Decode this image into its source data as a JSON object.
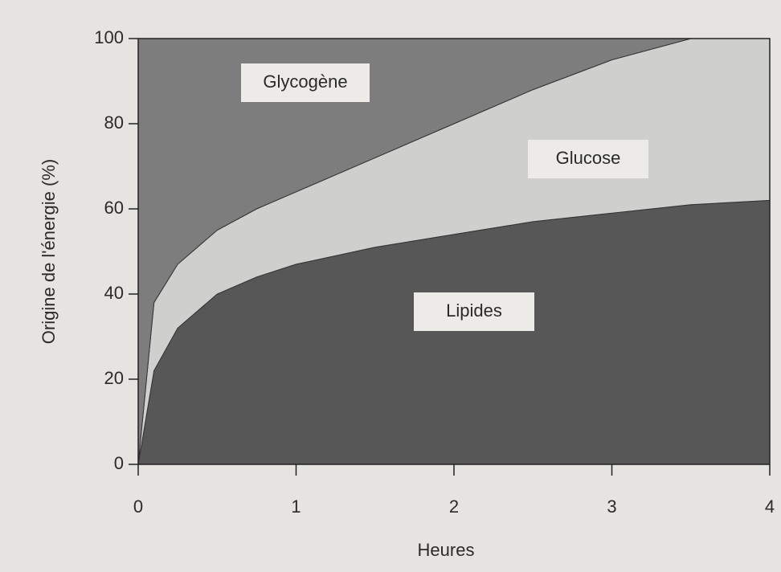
{
  "chart_data": {
    "type": "area",
    "stacked": true,
    "x_label": "Heures",
    "y_label": "Origine de l'énergie (%)",
    "x": [
      0,
      0.1,
      0.25,
      0.5,
      0.75,
      1,
      1.5,
      2,
      2.5,
      3,
      3.5,
      4
    ],
    "series": [
      {
        "name": "Lipides",
        "color": "#575757",
        "values": [
          0,
          22,
          32,
          40,
          44,
          47,
          51,
          54,
          57,
          59,
          61,
          62
        ]
      },
      {
        "name": "Glucose",
        "color": "#cfcfcd",
        "values": [
          0,
          16,
          15,
          15,
          16,
          17,
          21,
          26,
          31,
          36,
          39,
          38
        ]
      },
      {
        "name": "Glycogène",
        "color": "#7d7d7d",
        "values": [
          100,
          62,
          53,
          45,
          40,
          36,
          28,
          20,
          12,
          5,
          0,
          0
        ]
      }
    ],
    "xlim": [
      0,
      4
    ],
    "xticks": [
      0,
      1,
      2,
      3,
      4
    ],
    "ylim": [
      0,
      100
    ],
    "yticks": [
      0,
      20,
      40,
      60,
      80,
      100
    ]
  }
}
